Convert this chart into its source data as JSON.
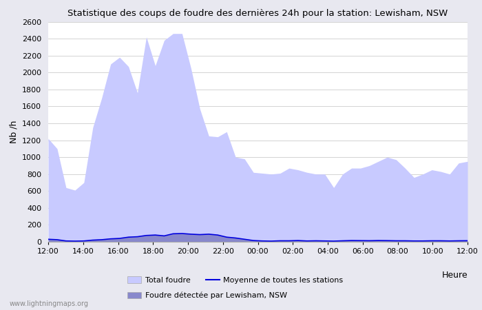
{
  "title": "Statistique des coups de foudre des dernières 24h pour la station: Lewisham, NSW",
  "xlabel": "Heure",
  "ylabel": "Nb /h",
  "ylim": [
    0,
    2600
  ],
  "yticks": [
    0,
    200,
    400,
    600,
    800,
    1000,
    1200,
    1400,
    1600,
    1800,
    2000,
    2200,
    2400,
    2600
  ],
  "xtick_labels": [
    "12:00",
    "14:00",
    "16:00",
    "18:00",
    "20:00",
    "22:00",
    "00:00",
    "02:00",
    "04:00",
    "06:00",
    "08:00",
    "10:00",
    "12:00"
  ],
  "watermark": "www.lightningmaps.org",
  "bg_color": "#e8e8f0",
  "plot_bg_color": "#ffffff",
  "total_foudre_color": "#c8caff",
  "local_foudre_color": "#8888cc",
  "mean_line_color": "#0000dd",
  "total_foudre": [
    1220,
    1100,
    640,
    610,
    700,
    1350,
    1700,
    2100,
    2180,
    2070,
    1760,
    2420,
    2080,
    2380,
    2460,
    2460,
    2050,
    1570,
    1250,
    1240,
    1300,
    1000,
    980,
    820,
    810,
    800,
    810,
    870,
    850,
    820,
    800,
    800,
    640,
    800,
    870,
    870,
    900,
    950,
    1000,
    970,
    870,
    760,
    800,
    850,
    830,
    800,
    930,
    950
  ],
  "local_foudre": [
    30,
    25,
    10,
    8,
    10,
    20,
    25,
    35,
    40,
    55,
    60,
    75,
    80,
    70,
    95,
    98,
    90,
    85,
    90,
    80,
    55,
    45,
    30,
    15,
    10,
    8,
    12,
    12,
    15,
    10,
    12,
    10,
    8,
    12,
    15,
    14,
    13,
    15,
    14,
    12,
    12,
    10,
    10,
    12,
    12,
    10,
    12,
    13
  ],
  "mean_line": [
    30,
    25,
    10,
    8,
    10,
    20,
    25,
    35,
    40,
    55,
    60,
    75,
    80,
    70,
    95,
    98,
    90,
    85,
    90,
    80,
    55,
    45,
    30,
    15,
    10,
    8,
    12,
    12,
    15,
    10,
    12,
    10,
    8,
    12,
    15,
    14,
    13,
    15,
    14,
    12,
    12,
    10,
    10,
    12,
    12,
    10,
    12,
    13
  ],
  "n_points": 48,
  "legend_total_label": "Total foudre",
  "legend_mean_label": "Moyenne de toutes les stations",
  "legend_local_label": "Foudre détectée par Lewisham, NSW"
}
